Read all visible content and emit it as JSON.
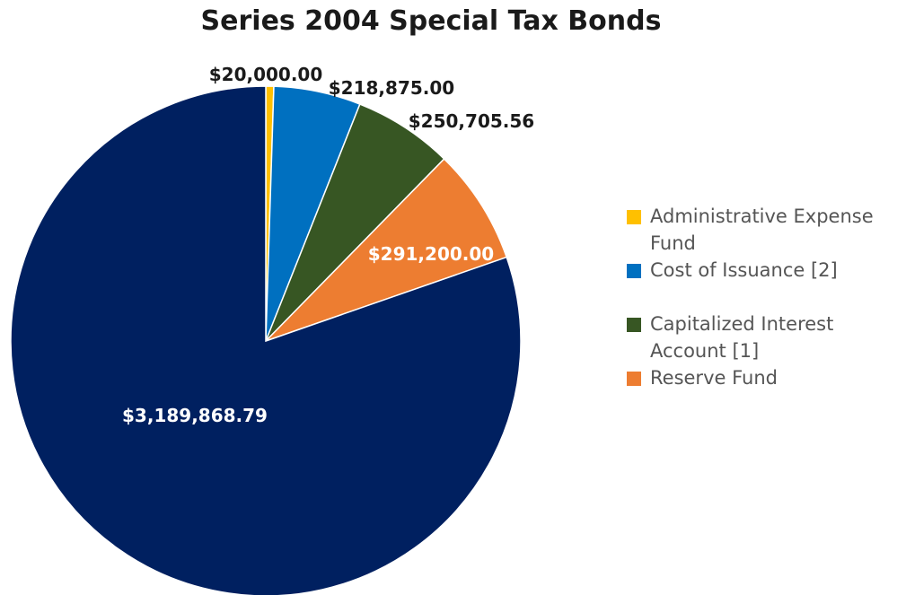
{
  "chart_data": {
    "type": "pie",
    "title": "Series 2004 Special Tax Bonds",
    "slices": [
      {
        "label": "Administrative Expense Fund",
        "value": 20000.0,
        "display": "$20,000.00",
        "color": "#FFC000"
      },
      {
        "label": "Cost of Issuance [2]",
        "value": 218875.0,
        "display": "$218,875.00",
        "color": "#0070C0"
      },
      {
        "label": "Capitalized Interest Account [1]",
        "value": 250705.56,
        "display": "$250,705.56",
        "color": "#375623"
      },
      {
        "label": "Reserve Fund",
        "value": 291200.0,
        "display": "$291,200.00",
        "color": "#ED7D31"
      },
      {
        "label": "",
        "value": 3189868.79,
        "display": "$3,189,868.79",
        "color": "#002060"
      }
    ],
    "legend": {
      "position": "right",
      "entries": [
        {
          "label": "Administrative Expense Fund",
          "color": "#FFC000"
        },
        {
          "label": "Cost of Issuance [2]",
          "color": "#0070C0"
        },
        {
          "label": "Capitalized Interest Account [1]",
          "color": "#375623"
        },
        {
          "label": "Reserve Fund",
          "color": "#ED7D31"
        }
      ]
    }
  }
}
